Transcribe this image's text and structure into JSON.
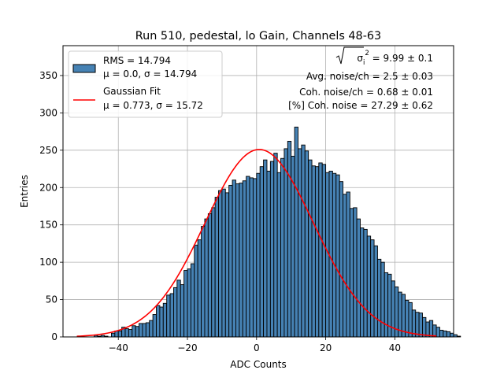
{
  "chart_data": {
    "type": "bar",
    "title": "Run 510, pedestal, lo Gain, Channels 48-63",
    "xlabel": "ADC Counts",
    "ylabel": "Entries",
    "xlim": [
      -56,
      57
    ],
    "ylim": [
      0,
      390
    ],
    "xticks": [
      -40,
      -20,
      0,
      20,
      40
    ],
    "xtick_labels": [
      "−40",
      "−20",
      "0",
      "20",
      "40"
    ],
    "yticks": [
      0,
      50,
      100,
      150,
      200,
      250,
      300,
      350
    ],
    "ytick_labels": [
      "0",
      "50",
      "100",
      "150",
      "200",
      "250",
      "300",
      "350"
    ],
    "grid": true,
    "legend_placement": "top-left",
    "legend": [
      {
        "kind": "patch",
        "line1": "RMS = 14.794",
        "line2": "μ = 0.0, σ = 14.794"
      },
      {
        "kind": "line",
        "line1": "Gaussian Fit",
        "line2": "μ = 0.773, σ = 15.72"
      }
    ],
    "annotations": [
      {
        "prefix": "√σ",
        "sub": "i",
        "sup": "2",
        "suffix": " = 9.99 ± 0.1"
      },
      {
        "text": "Avg. noise/ch = 2.5 ± 0.03"
      },
      {
        "text": "Coh. noise/ch = 0.68 ± 0.01"
      },
      {
        "text": "[%] Coh. noise = 27.29 ± 0.62"
      }
    ],
    "histogram": {
      "x_start": -47,
      "bin_width": 1,
      "counts": [
        2,
        1,
        2,
        1,
        0,
        5,
        8,
        8,
        13,
        11,
        10,
        15,
        14,
        18,
        18,
        19,
        22,
        30,
        42,
        40,
        45,
        56,
        58,
        66,
        76,
        70,
        89,
        91,
        98,
        123,
        130,
        148,
        158,
        165,
        173,
        187,
        196,
        198,
        193,
        203,
        210,
        205,
        206,
        209,
        215,
        213,
        212,
        219,
        228,
        237,
        222,
        235,
        246,
        220,
        239,
        252,
        262,
        242,
        281,
        252,
        257,
        249,
        237,
        229,
        228,
        233,
        231,
        220,
        222,
        219,
        217,
        208,
        191,
        194,
        172,
        173,
        158,
        146,
        144,
        135,
        130,
        122,
        104,
        100,
        86,
        84,
        75,
        67,
        60,
        57,
        49,
        46,
        36,
        33,
        32,
        26,
        20,
        22,
        16,
        13,
        9,
        8,
        7,
        5,
        3,
        1
      ],
      "color": "#4682b4",
      "edge_color": "#000000"
    },
    "series": [
      {
        "name": "Gaussian Fit",
        "type": "line",
        "color": "#ff0000",
        "mu": 0.773,
        "sigma": 15.72,
        "amplitude": 251,
        "x_range": [
          -52,
          52
        ]
      }
    ]
  }
}
